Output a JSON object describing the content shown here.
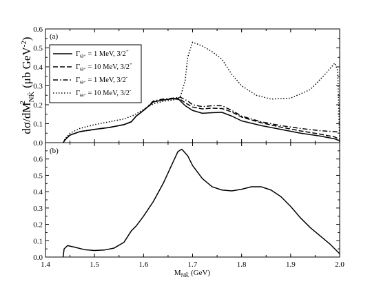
{
  "chart_data": [
    {
      "type": "line",
      "panel_label": "(a)",
      "xlim": [
        1.4,
        2.0
      ],
      "ylim": [
        0.0,
        0.6
      ],
      "x_ticks": [
        "1.4",
        "1.5",
        "1.6",
        "1.7",
        "1.8",
        "1.9",
        "2.0"
      ],
      "y_ticks": [
        "0.0",
        "0.1",
        "0.2",
        "0.3",
        "0.4",
        "0.5",
        "0.6"
      ],
      "legend_position": "top-left",
      "series": [
        {
          "name": "Γ_Θ⁺ = 1 MeV, 3/2⁺",
          "style": "solid",
          "points": [
            [
              1.436,
              0.0
            ],
            [
              1.44,
              0.015
            ],
            [
              1.45,
              0.04
            ],
            [
              1.47,
              0.058
            ],
            [
              1.5,
              0.07
            ],
            [
              1.53,
              0.08
            ],
            [
              1.56,
              0.095
            ],
            [
              1.575,
              0.11
            ],
            [
              1.585,
              0.14
            ],
            [
              1.6,
              0.17
            ],
            [
              1.62,
              0.215
            ],
            [
              1.64,
              0.225
            ],
            [
              1.66,
              0.232
            ],
            [
              1.672,
              0.228
            ],
            [
              1.685,
              0.195
            ],
            [
              1.7,
              0.17
            ],
            [
              1.72,
              0.155
            ],
            [
              1.74,
              0.158
            ],
            [
              1.76,
              0.16
            ],
            [
              1.78,
              0.14
            ],
            [
              1.8,
              0.115
            ],
            [
              1.84,
              0.09
            ],
            [
              1.88,
              0.07
            ],
            [
              1.92,
              0.05
            ],
            [
              1.96,
              0.035
            ],
            [
              1.99,
              0.02
            ],
            [
              2.0,
              0.01
            ]
          ]
        },
        {
          "name": "Γ_Θ⁺ = 10 MeV, 3/2⁺",
          "style": "dashed",
          "points": [
            [
              1.436,
              0.0
            ],
            [
              1.44,
              0.015
            ],
            [
              1.45,
              0.04
            ],
            [
              1.47,
              0.058
            ],
            [
              1.5,
              0.07
            ],
            [
              1.53,
              0.08
            ],
            [
              1.56,
              0.095
            ],
            [
              1.575,
              0.11
            ],
            [
              1.585,
              0.14
            ],
            [
              1.6,
              0.17
            ],
            [
              1.62,
              0.215
            ],
            [
              1.64,
              0.225
            ],
            [
              1.66,
              0.232
            ],
            [
              1.672,
              0.234
            ],
            [
              1.685,
              0.21
            ],
            [
              1.7,
              0.188
            ],
            [
              1.72,
              0.178
            ],
            [
              1.74,
              0.182
            ],
            [
              1.76,
              0.18
            ],
            [
              1.78,
              0.162
            ],
            [
              1.8,
              0.135
            ],
            [
              1.84,
              0.105
            ],
            [
              1.88,
              0.082
            ],
            [
              1.92,
              0.062
            ],
            [
              1.96,
              0.045
            ],
            [
              1.99,
              0.03
            ],
            [
              2.0,
              0.018
            ]
          ]
        },
        {
          "name": "Γ_Θ⁺ = 1 MeV, 3/2⁻",
          "style": "dash-dot",
          "points": [
            [
              1.436,
              0.0
            ],
            [
              1.44,
              0.015
            ],
            [
              1.45,
              0.04
            ],
            [
              1.47,
              0.058
            ],
            [
              1.5,
              0.07
            ],
            [
              1.53,
              0.08
            ],
            [
              1.56,
              0.095
            ],
            [
              1.575,
              0.11
            ],
            [
              1.585,
              0.14
            ],
            [
              1.6,
              0.17
            ],
            [
              1.62,
              0.22
            ],
            [
              1.64,
              0.23
            ],
            [
              1.66,
              0.235
            ],
            [
              1.675,
              0.24
            ],
            [
              1.69,
              0.22
            ],
            [
              1.7,
              0.2
            ],
            [
              1.72,
              0.19
            ],
            [
              1.74,
              0.195
            ],
            [
              1.76,
              0.195
            ],
            [
              1.78,
              0.17
            ],
            [
              1.8,
              0.14
            ],
            [
              1.84,
              0.11
            ],
            [
              1.88,
              0.09
            ],
            [
              1.92,
              0.075
            ],
            [
              1.96,
              0.063
            ],
            [
              1.99,
              0.058
            ],
            [
              2.0,
              0.055
            ]
          ]
        },
        {
          "name": "Γ_Θ⁺ = 10 MeV, 3/2⁻",
          "style": "dotted",
          "points": [
            [
              1.436,
              0.0
            ],
            [
              1.44,
              0.02
            ],
            [
              1.45,
              0.05
            ],
            [
              1.47,
              0.075
            ],
            [
              1.5,
              0.095
            ],
            [
              1.53,
              0.11
            ],
            [
              1.56,
              0.125
            ],
            [
              1.58,
              0.145
            ],
            [
              1.6,
              0.175
            ],
            [
              1.62,
              0.205
            ],
            [
              1.64,
              0.218
            ],
            [
              1.66,
              0.225
            ],
            [
              1.675,
              0.24
            ],
            [
              1.685,
              0.33
            ],
            [
              1.69,
              0.45
            ],
            [
              1.7,
              0.53
            ],
            [
              1.72,
              0.51
            ],
            [
              1.74,
              0.48
            ],
            [
              1.76,
              0.44
            ],
            [
              1.78,
              0.36
            ],
            [
              1.8,
              0.3
            ],
            [
              1.83,
              0.25
            ],
            [
              1.86,
              0.23
            ],
            [
              1.9,
              0.235
            ],
            [
              1.94,
              0.28
            ],
            [
              1.97,
              0.36
            ],
            [
              1.99,
              0.42
            ],
            [
              1.996,
              0.38
            ],
            [
              2.0,
              0.0
            ]
          ]
        }
      ]
    },
    {
      "type": "line",
      "panel_label": "(b)",
      "xlim": [
        1.4,
        2.0
      ],
      "ylim": [
        0.0,
        0.7
      ],
      "x_ticks": [
        "1.4",
        "1.5",
        "1.6",
        "1.7",
        "1.8",
        "1.9",
        "2.0"
      ],
      "y_ticks": [
        "0.0",
        "0.1",
        "0.2",
        "0.3",
        "0.4",
        "0.5",
        "0.6"
      ],
      "series": [
        {
          "name": "",
          "style": "solid",
          "points": [
            [
              1.436,
              0.0
            ],
            [
              1.438,
              0.05
            ],
            [
              1.445,
              0.07
            ],
            [
              1.46,
              0.06
            ],
            [
              1.48,
              0.045
            ],
            [
              1.5,
              0.04
            ],
            [
              1.52,
              0.043
            ],
            [
              1.54,
              0.055
            ],
            [
              1.56,
              0.09
            ],
            [
              1.575,
              0.16
            ],
            [
              1.585,
              0.19
            ],
            [
              1.6,
              0.25
            ],
            [
              1.62,
              0.34
            ],
            [
              1.64,
              0.45
            ],
            [
              1.66,
              0.58
            ],
            [
              1.67,
              0.645
            ],
            [
              1.678,
              0.66
            ],
            [
              1.69,
              0.62
            ],
            [
              1.7,
              0.56
            ],
            [
              1.72,
              0.48
            ],
            [
              1.74,
              0.43
            ],
            [
              1.76,
              0.41
            ],
            [
              1.78,
              0.405
            ],
            [
              1.8,
              0.415
            ],
            [
              1.82,
              0.43
            ],
            [
              1.84,
              0.43
            ],
            [
              1.86,
              0.41
            ],
            [
              1.88,
              0.37
            ],
            [
              1.9,
              0.31
            ],
            [
              1.92,
              0.24
            ],
            [
              1.94,
              0.18
            ],
            [
              1.96,
              0.13
            ],
            [
              1.98,
              0.08
            ],
            [
              1.99,
              0.05
            ],
            [
              2.0,
              0.02
            ]
          ]
        }
      ]
    }
  ],
  "y_axis_label": "dσ/dM²NK̄ (μb GeV⁻²)",
  "x_axis_label": "MNK̄ (GeV)",
  "legend": {
    "entries": [
      {
        "gamma": "Γ",
        "sub": "Θ⁺",
        "rest": " = 1 MeV, 3/2",
        "sup": "+"
      },
      {
        "gamma": "Γ",
        "sub": "Θ⁺",
        "rest": " = 10 MeV, 3/2",
        "sup": "+"
      },
      {
        "gamma": "Γ",
        "sub": "Θ⁺",
        "rest": " = 1 MeV, 3/2",
        "sup": "-"
      },
      {
        "gamma": "Γ",
        "sub": "Θ⁺",
        "rest": " = 10 MeV, 3/2",
        "sup": "-"
      }
    ]
  }
}
